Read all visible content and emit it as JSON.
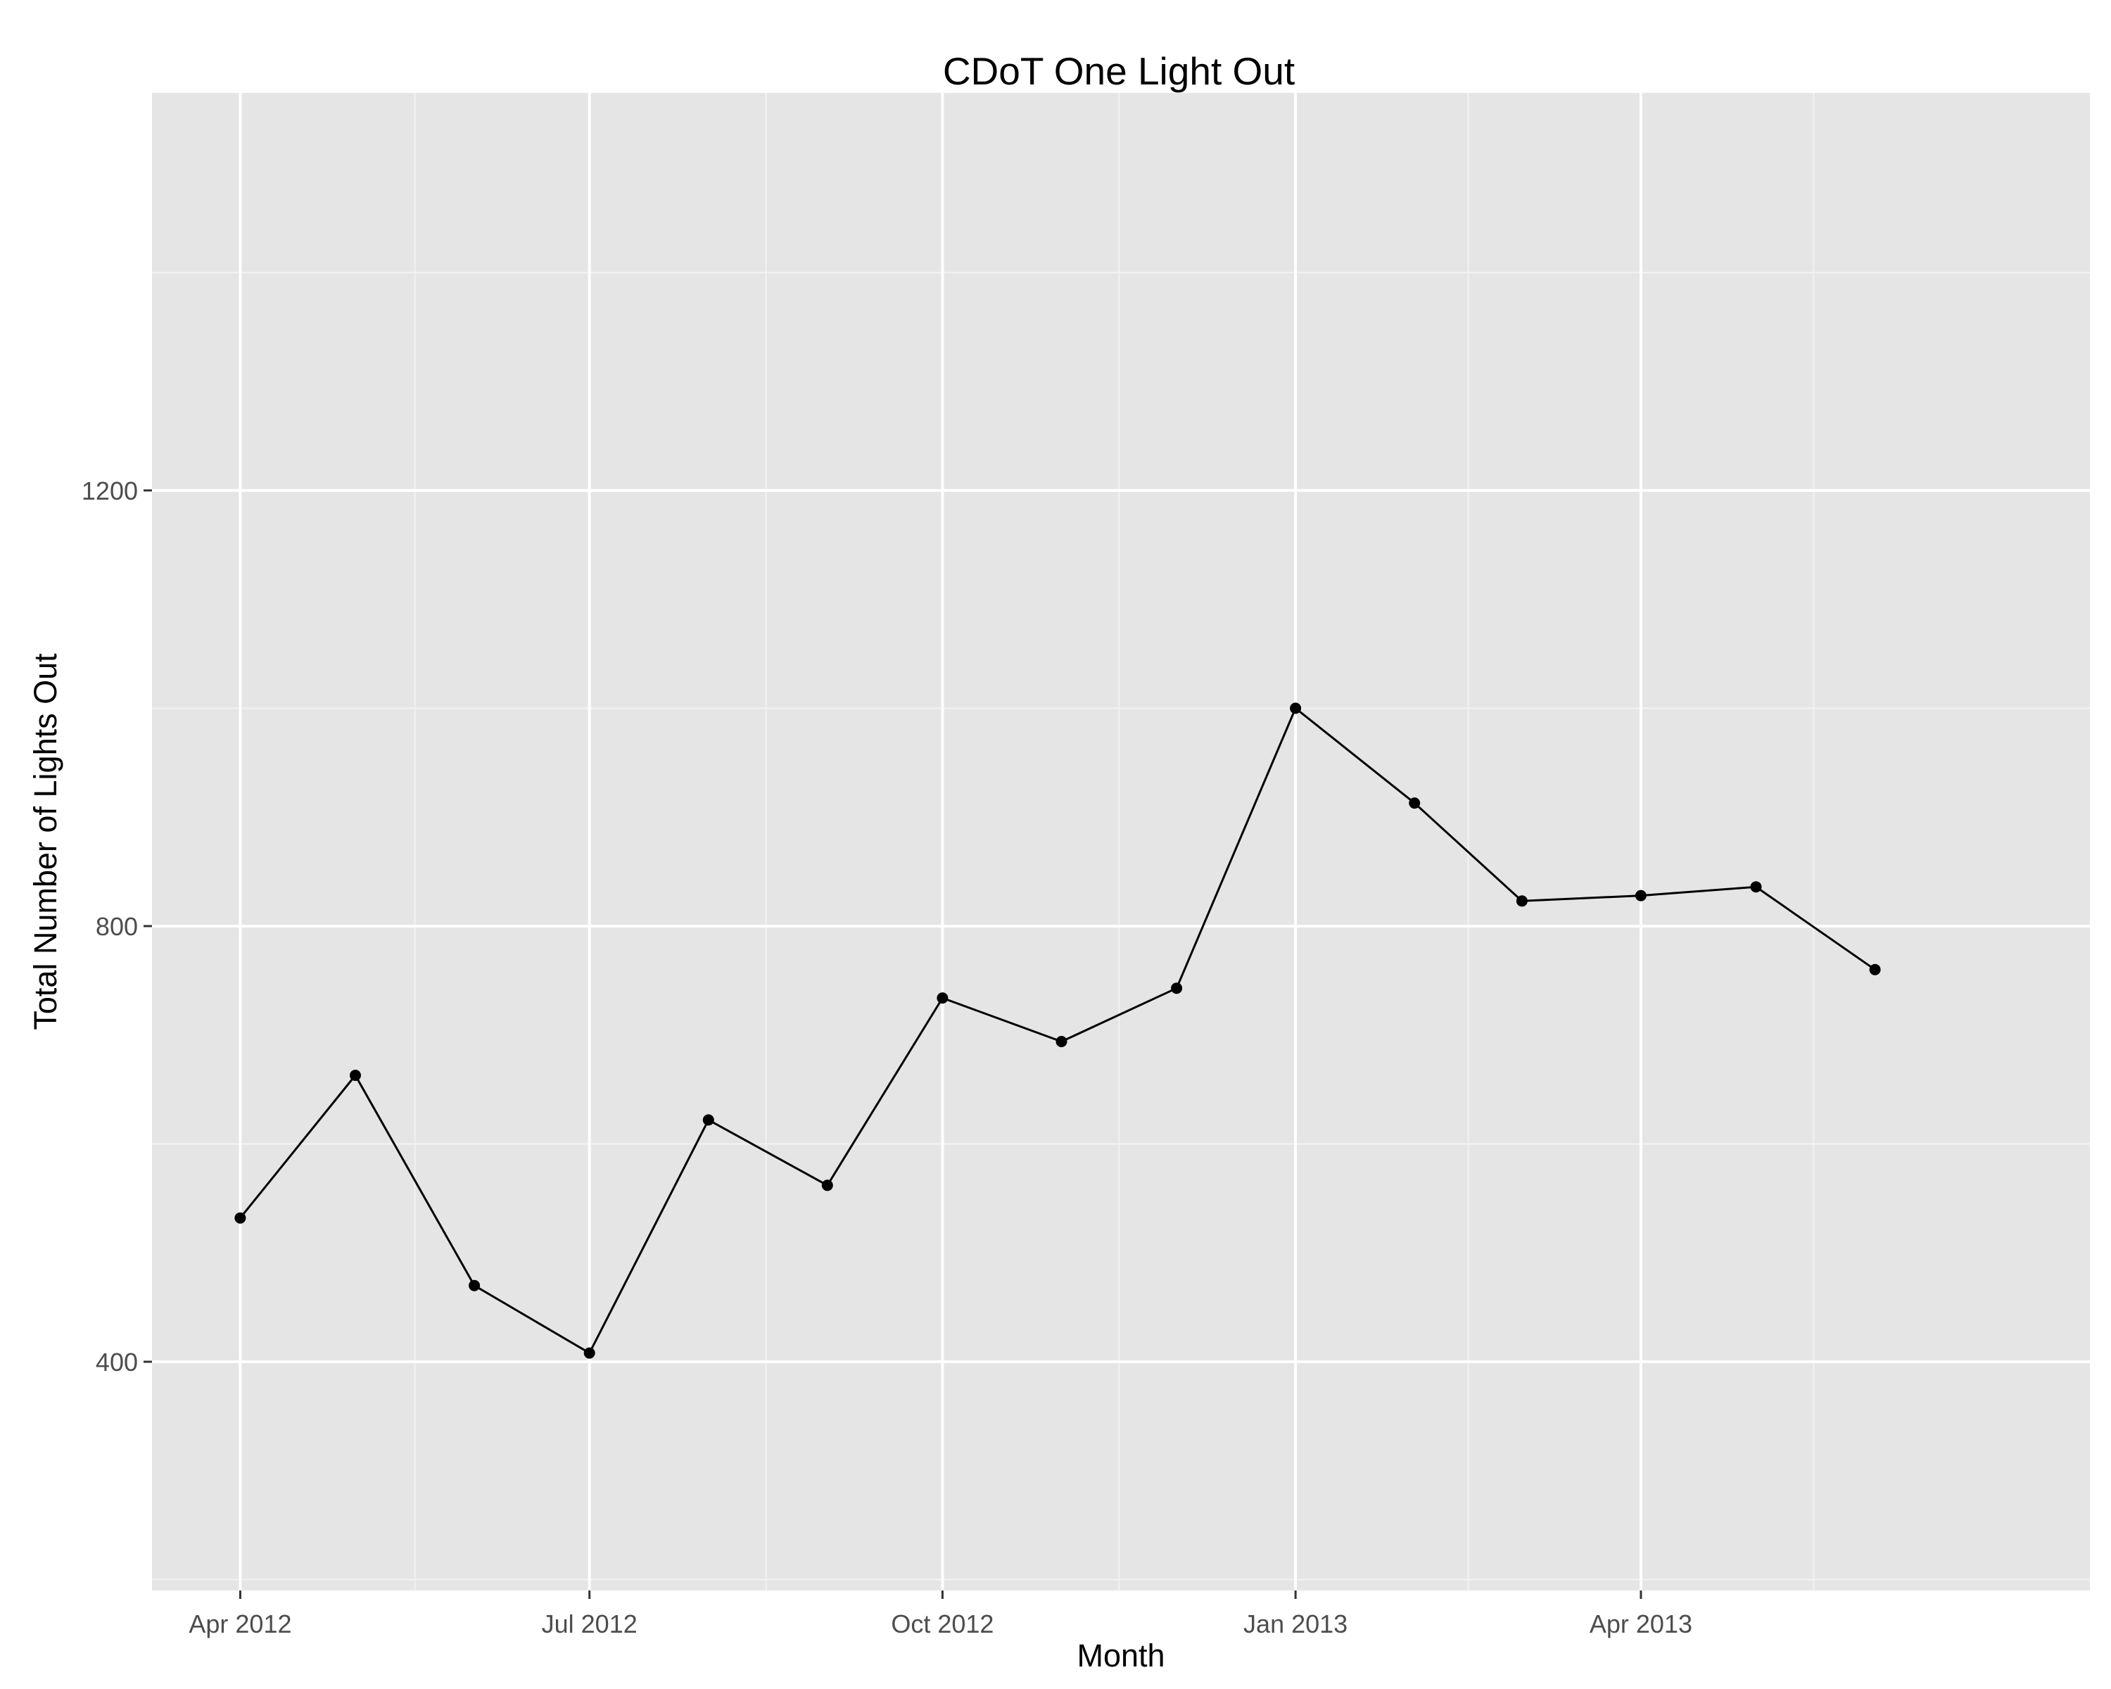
{
  "chart_data": {
    "type": "line",
    "title": "CDoT One Light Out",
    "xlabel": "Month",
    "ylabel": "Total Number of Lights Out",
    "x_ticks": [
      "Apr 2012",
      "Jul 2012",
      "Oct 2012",
      "Jan 2013",
      "Apr 2013"
    ],
    "y_ticks": [
      400,
      800,
      1200
    ],
    "x_range": [
      "2012-03-09",
      "2013-07-27"
    ],
    "ylim": [
      190,
      1565
    ],
    "grid": true,
    "legend": "none",
    "series": [
      {
        "x": [
          "2012-04-01",
          "2012-05-01",
          "2012-06-01",
          "2012-07-01",
          "2012-08-01",
          "2012-09-01",
          "2012-10-01",
          "2012-11-01",
          "2012-12-01",
          "2013-01-01",
          "2013-02-01",
          "2013-03-01",
          "2013-04-01",
          "2013-05-01",
          "2013-06-01"
        ],
        "values": [
          532,
          663,
          470,
          408,
          622,
          562,
          734,
          694,
          743,
          1000,
          913,
          823,
          828,
          836,
          760
        ]
      }
    ],
    "colors": {
      "panel": "#e5e5e5",
      "grid_major": "#ffffff",
      "grid_minor": "#f2f2f2",
      "line": "#000000",
      "point": "#000000",
      "tick_label": "#4d4d4d"
    }
  }
}
